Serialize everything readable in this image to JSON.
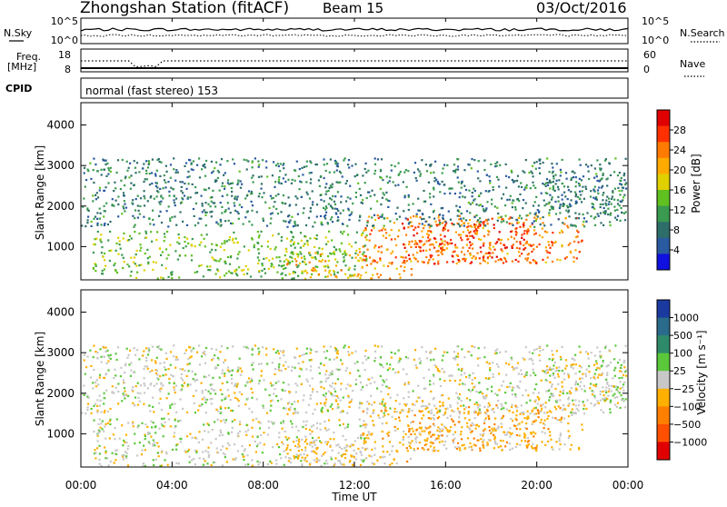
{
  "title": {
    "station": "Zhongshan Station (fitACF)",
    "beam": "Beam 15",
    "date": "03/Oct/2016"
  },
  "noise_panel": {
    "left_label": "N.Sky",
    "right_label": "N.Search",
    "left_ticks": [
      "10^5",
      "10^0"
    ],
    "right_ticks": [
      "10^5",
      "10^0"
    ]
  },
  "freq_panel": {
    "left_label_1": "Freq.",
    "left_label_2": "[MHz]",
    "right_label": "Nave",
    "left_ticks": [
      "18",
      "8"
    ],
    "right_ticks": [
      "60",
      "0"
    ]
  },
  "cpid": {
    "label": "CPID",
    "text": "normal (fast stereo) 153"
  },
  "power_panel": {
    "ylabel": "Slant Range [km]",
    "yticks": [
      "4000",
      "3000",
      "2000",
      "1000"
    ],
    "colorbar_label": "Power [dB]",
    "colorbar_ticks": [
      "28",
      "24",
      "20",
      "16",
      "12",
      "8",
      "4"
    ],
    "colors": [
      "#e00000",
      "#ff3000",
      "#ff7a00",
      "#ffaa00",
      "#e0d000",
      "#60c020",
      "#3a9a50",
      "#2e6e6a",
      "#2a5aa0",
      "#1010e0"
    ]
  },
  "velocity_panel": {
    "ylabel": "Slant Range [km]",
    "yticks": [
      "4000",
      "3000",
      "2000",
      "1000"
    ],
    "colorbar_label": "Velocity [m s⁻¹]",
    "colorbar_ticks": [
      "1000",
      "500",
      "100",
      "25",
      "−25",
      "−100",
      "−500",
      "−1000"
    ],
    "colors": [
      "#1a3aa0",
      "#2a6a8a",
      "#2f8a6a",
      "#5ac83a",
      "#c8c8c8",
      "#ffb000",
      "#ff8000",
      "#ff5000",
      "#e00000"
    ]
  },
  "xaxis": {
    "ticks": [
      "00:00",
      "04:00",
      "08:00",
      "12:00",
      "16:00",
      "20:00",
      "00:00"
    ],
    "label": "Time UT"
  },
  "chart_data": {
    "type": "heatmap",
    "x_range_hours": [
      0,
      24
    ],
    "y_range_km": [
      180,
      4550
    ],
    "panels": [
      "Power [dB]",
      "Velocity [m s⁻¹]"
    ],
    "power_range_db": [
      0,
      32
    ],
    "velocity_range_ms": [
      -1000,
      1000
    ],
    "scatter_regions": [
      {
        "t0": 0.5,
        "t1": 12.5,
        "r0": 200,
        "r1": 1400,
        "power": 14,
        "velocity": 0
      },
      {
        "t0": 9.0,
        "t1": 12.5,
        "r0": 200,
        "r1": 900,
        "power": 20,
        "velocity": -150
      },
      {
        "t0": 12.5,
        "t1": 14.5,
        "r0": 200,
        "r1": 600,
        "power": 22,
        "velocity": -200
      },
      {
        "t0": 12.3,
        "t1": 22.0,
        "r0": 600,
        "r1": 1800,
        "power": 24,
        "velocity": -200
      },
      {
        "t0": 14.0,
        "t1": 20.0,
        "r0": 600,
        "r1": 1600,
        "power": 28,
        "velocity": -250
      },
      {
        "t0": 20.5,
        "t1": 24.0,
        "r0": 1800,
        "r1": 2800,
        "power": 8,
        "velocity": 0
      },
      {
        "t0": 0.0,
        "t1": 24.0,
        "r0": 1500,
        "r1": 3200,
        "power": 8,
        "velocity": 0
      }
    ]
  }
}
